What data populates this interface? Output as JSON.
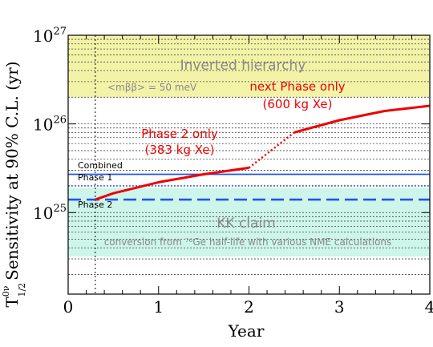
{
  "chart_data": {
    "type": "line",
    "xlabel": "Year",
    "ylabel": "Sensitivity at 90% C.L. (yr)",
    "ylabel_symbol": "T",
    "ylabel_sup": "0ν",
    "ylabel_sub": "1/2",
    "xlim": [
      0,
      4
    ],
    "ylim_log10": [
      24.08,
      27.0
    ],
    "x_ticks": [
      "0",
      "1",
      "2",
      "3",
      "4"
    ],
    "y_ticks": [
      {
        "base": "10",
        "exp": "25",
        "value": 1e+25
      },
      {
        "base": "10",
        "exp": "26",
        "value": 1e+26
      },
      {
        "base": "10",
        "exp": "27",
        "value": 1e+27
      }
    ],
    "y_scale": "log",
    "bands": [
      {
        "name": "Inverted hierarchy",
        "y_from": 2e+26,
        "y_to": 1e+27,
        "color": "#f3f3a8",
        "annotation": "<mββ> = 50 meV"
      },
      {
        "name": "KK claim",
        "y_from": 3.2e+24,
        "y_to": 1.9e+25,
        "color": "#cdf5ea",
        "annotation": "conversion from ⁷⁶Ge half-life with various NME calculations"
      }
    ],
    "reference_lines": [
      {
        "label": "Combined",
        "y": 2.7e+25,
        "style": "solid"
      },
      {
        "label": "Phase 1",
        "y": 2e+25,
        "style": "dotted"
      },
      {
        "label": "Phase 2",
        "y": 1.4e+25,
        "style": "dashed"
      }
    ],
    "vertical_marker": {
      "x": 0.3,
      "style": "dotted"
    },
    "series": [
      {
        "name": "Phase 2 only",
        "name_line2": "(383 kg Xe)",
        "style": "solid",
        "x": [
          0.3,
          0.5,
          1.0,
          1.5,
          2.0
        ],
        "y": [
          1.4e+25,
          1.65e+25,
          2.2e+25,
          2.7e+25,
          3.2e+25
        ]
      },
      {
        "name": "",
        "style": "dotted",
        "x": [
          2.0,
          2.5
        ],
        "y": [
          3.2e+25,
          8e+25
        ]
      },
      {
        "name": "next Phase only",
        "name_line2": "(600 kg Xe)",
        "style": "solid",
        "x": [
          2.5,
          3.0,
          3.5,
          4.0
        ],
        "y": [
          8e+25,
          1.1e+26,
          1.4e+26,
          1.6e+26
        ]
      }
    ],
    "colors": {
      "series": "#ee0000",
      "reference": "#2255ee",
      "band_text": "#888888"
    }
  }
}
